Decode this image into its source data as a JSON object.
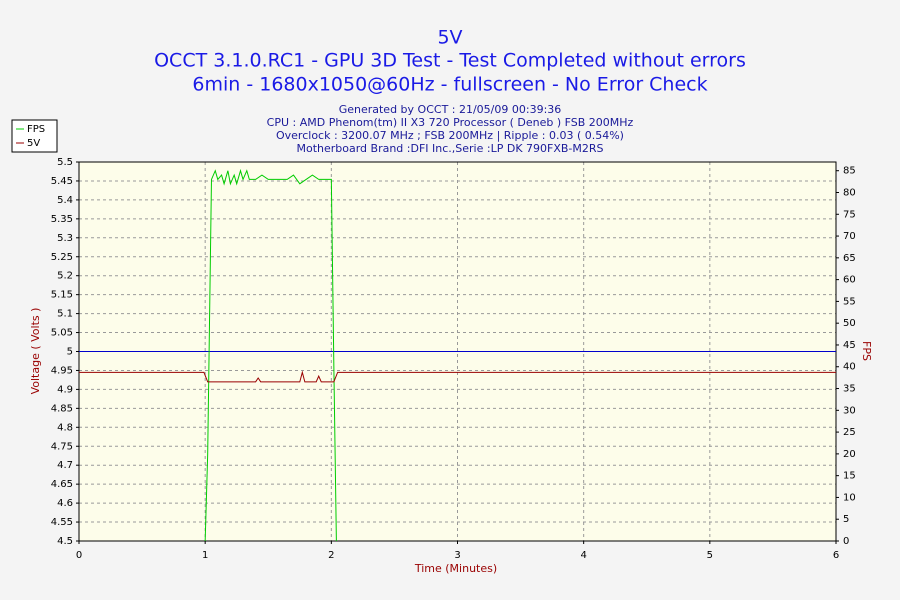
{
  "chart_data": {
    "type": "line",
    "title": "5V",
    "subtitle": [
      "OCCT 3.1.0.RC1 - GPU 3D Test - Test Completed without errors",
      "6min - 1680x1050@60Hz - fullscreen - No Error Check"
    ],
    "info": [
      "Generated by OCCT : 21/05/09 00:39:36",
      "CPU : AMD Phenom(tm) II X3 720 Processor ( Deneb ) FSB 200MHz",
      "Overclock : 3200.07 MHz ; FSB 200MHz | Ripple : 0.03 ( 0.54%)",
      "Motherboard Brand :DFI Inc.,Serie :LP DK 790FXB-M2RS"
    ],
    "xlabel": "Time (Minutes)",
    "ylabel": "Voltage ( Volts )",
    "y2label": "FPS",
    "xlim": [
      0,
      6
    ],
    "xticks": [
      0,
      1,
      2,
      3,
      4,
      5,
      6
    ],
    "ylim": [
      4.5,
      5.5
    ],
    "yticks": [
      4.5,
      4.55,
      4.6,
      4.65,
      4.7,
      4.75,
      4.8,
      4.85,
      4.9,
      4.95,
      5,
      5.05,
      5.1,
      5.15,
      5.2,
      5.25,
      5.3,
      5.35,
      5.4,
      5.45,
      5.5
    ],
    "y2lim": [
      0,
      87
    ],
    "y2ticks": [
      0,
      5,
      10,
      15,
      20,
      25,
      30,
      35,
      40,
      45,
      50,
      55,
      60,
      65,
      70,
      75,
      80,
      85
    ],
    "grid": true,
    "legend": "top-left",
    "reference_line": {
      "value": 5,
      "color": "#0000cc"
    },
    "series": [
      {
        "name": "FPS",
        "color": "#00cc00",
        "axis": "y2",
        "x": [
          1.0,
          1.02,
          1.05,
          1.08,
          1.1,
          1.13,
          1.15,
          1.18,
          1.2,
          1.23,
          1.25,
          1.28,
          1.3,
          1.33,
          1.35,
          1.4,
          1.45,
          1.5,
          1.55,
          1.6,
          1.65,
          1.7,
          1.75,
          1.8,
          1.85,
          1.9,
          1.95,
          2.0,
          2.02,
          2.04
        ],
        "values": [
          0,
          20,
          83,
          85,
          83,
          84,
          82,
          85,
          82,
          84,
          82,
          85,
          83,
          85,
          83,
          83,
          84,
          83,
          83,
          83,
          83,
          84,
          82,
          83,
          84,
          83,
          83,
          83,
          40,
          0
        ]
      },
      {
        "name": "5V",
        "color": "#990000",
        "x": [
          0,
          0.99,
          1.02,
          1.4,
          1.42,
          1.44,
          1.75,
          1.77,
          1.79,
          1.88,
          1.9,
          1.92,
          2.02,
          2.05,
          6
        ],
        "values": [
          4.945,
          4.945,
          4.92,
          4.92,
          4.93,
          4.92,
          4.92,
          4.945,
          4.92,
          4.92,
          4.935,
          4.92,
          4.92,
          4.945,
          4.945
        ]
      }
    ]
  }
}
